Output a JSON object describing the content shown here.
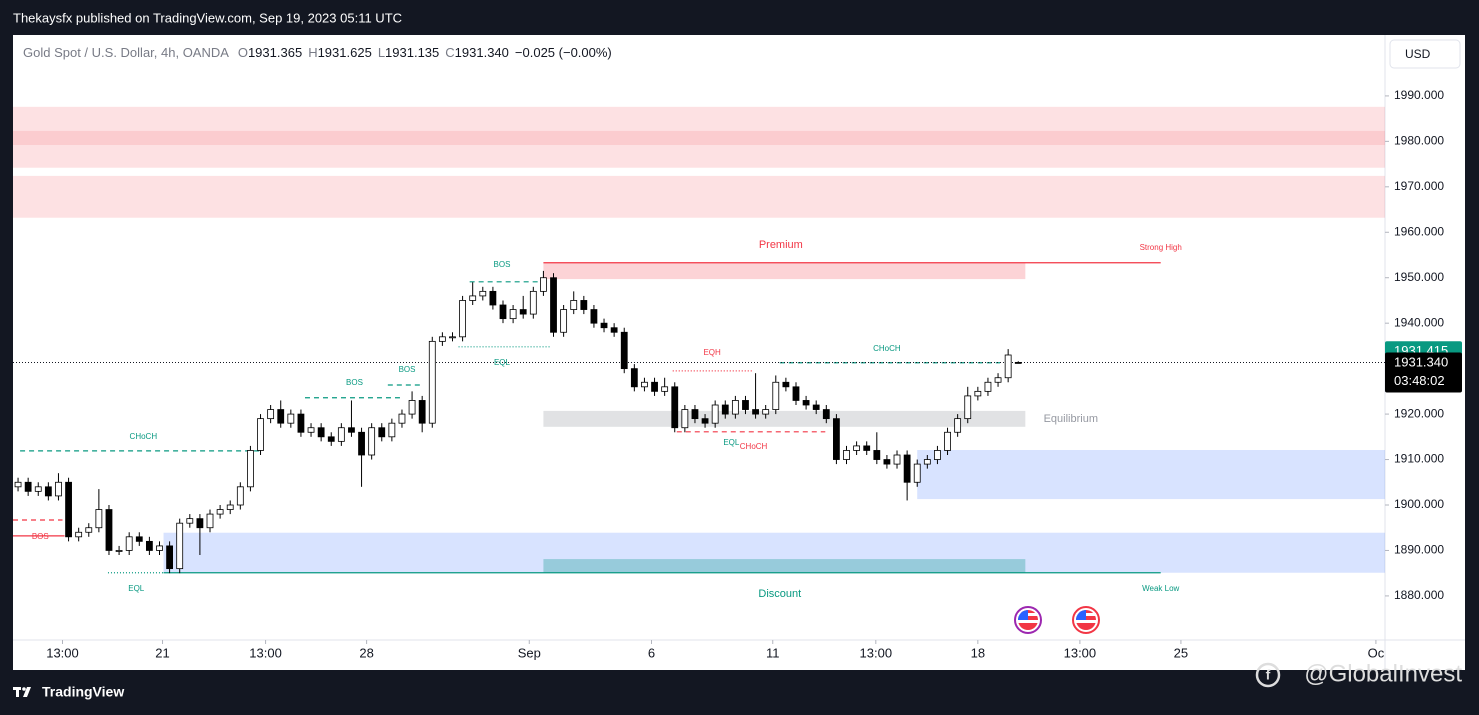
{
  "header": {
    "text": "Thekaysfx published on TradingView.com, Sep 19, 2023 05:11 UTC"
  },
  "footer": {
    "brand": "TradingView",
    "watermark": "@GlobalInvest"
  },
  "chart_data": {
    "type": "candlestick",
    "title": "Gold Spot / U.S. Dollar, 4h, OANDA",
    "ohlc_header": [
      {
        "key": "O",
        "value": "1931.365"
      },
      {
        "key": "H",
        "value": "1931.625"
      },
      {
        "key": "L",
        "value": "1931.135"
      },
      {
        "key": "C",
        "value": "1931.340"
      }
    ],
    "change": "−0.025 (−0.00%)",
    "currency": "USD",
    "up_color": "#ffffff",
    "down_color": "#000000",
    "border_color": "#000000",
    "grid": false,
    "open": [
      1904,
      1905,
      1903,
      1904,
      1902,
      1905,
      1893,
      1894,
      1895,
      1899,
      1890,
      1890,
      1893,
      1892,
      1890,
      1891,
      1886,
      1896,
      1897,
      1895,
      1898,
      1899,
      1900,
      1904,
      1912,
      1919,
      1921,
      1918,
      1920,
      1916,
      1917,
      1915,
      1914,
      1917,
      1916,
      1911,
      1917,
      1915,
      1918,
      1920,
      1923,
      1918,
      1936,
      1937,
      1937,
      1945,
      1946,
      1947,
      1944,
      1941,
      1943,
      1942,
      1947,
      1950,
      1938,
      1943,
      1945,
      1943,
      1940,
      1939,
      1938,
      1930,
      1926,
      1927,
      1925,
      1926,
      1917,
      1921,
      1919,
      1918,
      1922,
      1920,
      1923,
      1921,
      1920,
      1921,
      1927,
      1926,
      1923,
      1922,
      1921,
      1919,
      1910,
      1912,
      1913,
      1912,
      1910,
      1909,
      1911,
      1905,
      1909,
      1910,
      1912,
      1916,
      1919,
      1924,
      1925,
      1927,
      1928,
      1931.365
    ],
    "high": [
      1906,
      1906,
      1905,
      1905,
      1907,
      1906,
      1895,
      1896,
      1903.5,
      1900,
      1891,
      1894,
      1894,
      1893,
      1892,
      1892,
      1897,
      1898,
      1898,
      1899,
      1900,
      1901,
      1905,
      1913,
      1920,
      1922,
      1923,
      1921,
      1921,
      1918,
      1918,
      1916,
      1918,
      1923,
      1917,
      1918,
      1918,
      1919,
      1921,
      1925,
      1924,
      1937,
      1938,
      1938,
      1946,
      1949,
      1948,
      1948,
      1945,
      1944,
      1946,
      1948,
      1951.5,
      1951,
      1944,
      1947,
      1946,
      1944,
      1941,
      1940,
      1939,
      1931,
      1928,
      1928,
      1928,
      1927,
      1922,
      1922,
      1920,
      1923,
      1923,
      1924,
      1924,
      1929,
      1922,
      1928.5,
      1928,
      1927,
      1924,
      1923,
      1922,
      1920,
      1913,
      1914,
      1914,
      1916,
      1911,
      1912,
      1912,
      1910,
      1911,
      1913,
      1917,
      1920,
      1926,
      1926,
      1928,
      1929,
      1934.3,
      1931.625
    ],
    "low": [
      1903,
      1902,
      1902,
      1901,
      1901,
      1892,
      1892,
      1893,
      1894,
      1889,
      1889,
      1889,
      1891,
      1889,
      1889,
      1885,
      1885,
      1895,
      1889,
      1894,
      1897,
      1898,
      1899,
      1903,
      1911,
      1918,
      1917,
      1917,
      1915,
      1915,
      1914,
      1913,
      1913,
      1915,
      1904,
      1910,
      1914,
      1914,
      1917,
      1919,
      1916,
      1917,
      1935,
      1936,
      1936,
      1944,
      1945,
      1943,
      1940,
      1940,
      1941,
      1941,
      1946,
      1937,
      1937,
      1942,
      1942,
      1939,
      1938,
      1937,
      1929,
      1925,
      1925,
      1924,
      1924,
      1916,
      1916,
      1918,
      1917,
      1917,
      1919,
      1919,
      1920,
      1919,
      1919,
      1920,
      1925,
      1922,
      1921,
      1920,
      1918,
      1909,
      1909,
      1911,
      1911,
      1909,
      1908,
      1908,
      1901,
      1904,
      1908,
      1909,
      1911,
      1915,
      1918,
      1923,
      1924,
      1926,
      1927,
      1931.135
    ],
    "close": [
      1905,
      1903,
      1904,
      1902,
      1905,
      1893,
      1894,
      1895,
      1899,
      1890,
      1890,
      1893,
      1892,
      1890,
      1891,
      1886,
      1896,
      1897,
      1895,
      1898,
      1899,
      1900,
      1904,
      1912,
      1919,
      1921,
      1918,
      1920,
      1916,
      1917,
      1915,
      1914,
      1917,
      1916,
      1911,
      1917,
      1915,
      1918,
      1920,
      1923,
      1918,
      1936,
      1937,
      1937,
      1945,
      1946,
      1947,
      1944,
      1941,
      1943,
      1942,
      1947,
      1950,
      1938,
      1943,
      1945,
      1943,
      1940,
      1939,
      1938,
      1930,
      1926,
      1927,
      1925,
      1926,
      1917,
      1921,
      1919,
      1918,
      1922,
      1920,
      1923,
      1921,
      1920,
      1921,
      1927,
      1926,
      1923,
      1922,
      1921,
      1919,
      1910,
      1912,
      1913,
      1912,
      1910,
      1909,
      1911,
      1905,
      1909,
      1910,
      1912,
      1916,
      1919,
      1924,
      1925,
      1927,
      1928,
      1933,
      1931.34
    ],
    "xlim": [
      -0.5,
      135.3
    ],
    "xticks": [
      {
        "value": 4.4,
        "label": "13:00"
      },
      {
        "value": 14.3,
        "label": "21"
      },
      {
        "value": 24.5,
        "label": "13:00"
      },
      {
        "value": 34.5,
        "label": "28"
      },
      {
        "value": 50.6,
        "label": "Sep"
      },
      {
        "value": 62.7,
        "label": "6"
      },
      {
        "value": 74.7,
        "label": "11"
      },
      {
        "value": 84.9,
        "label": "13:00"
      },
      {
        "value": 95,
        "label": "18"
      },
      {
        "value": 105.1,
        "label": "13:00"
      },
      {
        "value": 115.1,
        "label": "25"
      },
      {
        "value": 134.4,
        "label": "Oc"
      }
    ],
    "ylim": [
      1870.3,
      2003.4
    ],
    "yticks": [
      {
        "value": 1880,
        "label": "1880.000"
      },
      {
        "value": 1890,
        "label": "1890.000"
      },
      {
        "value": 1900,
        "label": "1900.000"
      },
      {
        "value": 1910,
        "label": "1910.000"
      },
      {
        "value": 1920,
        "label": "1920.000"
      },
      {
        "value": 1930,
        "label": "1930.000"
      },
      {
        "value": 1940,
        "label": "1940.000"
      },
      {
        "value": 1950,
        "label": "1950.000"
      },
      {
        "value": 1960,
        "label": "1960.000"
      },
      {
        "value": 1970,
        "label": "1970.000"
      },
      {
        "value": 1980,
        "label": "1980.000"
      },
      {
        "value": 1990,
        "label": "1990.000"
      }
    ],
    "zones": [
      {
        "ylim": [
          1963.2,
          1972.4
        ],
        "xlim": [
          -0.5,
          135.3
        ],
        "color": "rgba(242,54,69,0.15)"
      },
      {
        "ylim": [
          1974.2,
          1987.6
        ],
        "xlim": [
          -0.5,
          135.3
        ],
        "color": "rgba(242,54,69,0.15)"
      },
      {
        "ylim": [
          1979.2,
          1982.3
        ],
        "xlim": [
          -0.5,
          135.3
        ],
        "color": "rgba(242,54,69,0.12)"
      },
      {
        "ylim": [
          1885.1,
          1893.9
        ],
        "xlim": [
          14.4,
          135.3
        ],
        "color": "rgba(41,98,255,0.18)"
      },
      {
        "ylim": [
          1901.3,
          1912.1
        ],
        "xlim": [
          89.0,
          135.3
        ],
        "color": "rgba(41,98,255,0.18)"
      },
      {
        "ylim": [
          1949.7,
          1953.3
        ],
        "xlim": [
          52.0,
          99.7
        ],
        "color": "rgba(242,54,69,0.22)"
      },
      {
        "ylim": [
          1917.2,
          1920.7
        ],
        "xlim": [
          52.0,
          99.7
        ],
        "color": "rgba(120,123,134,0.22)"
      },
      {
        "ylim": [
          1885.1,
          1888.1
        ],
        "xlim": [
          52.0,
          99.7
        ],
        "color": "rgba(0,150,136,0.3)"
      }
    ],
    "lines": [
      {
        "y": 1911.9,
        "x": [
          0.2,
          24.0
        ],
        "color": "#089981",
        "style": "dashed"
      },
      {
        "y": 1923.6,
        "x": [
          28.4,
          37.8
        ],
        "color": "#089981",
        "style": "dashed"
      },
      {
        "y": 1926.4,
        "x": [
          36.6,
          39.8
        ],
        "color": "#089981",
        "style": "dashed"
      },
      {
        "y": 1949.1,
        "x": [
          44.7,
          52.2
        ],
        "color": "#089981",
        "style": "dashed"
      },
      {
        "y": 1893.2,
        "x": [
          -0.5,
          4.6
        ],
        "color": "#f23645",
        "style": "solid"
      },
      {
        "y": 1896.7,
        "x": [
          -0.5,
          4.4
        ],
        "color": "#f23645",
        "style": "dashed"
      },
      {
        "y": 1885.1,
        "x": [
          8.9,
          14.5
        ],
        "color": "#089981",
        "style": "dotted"
      },
      {
        "y": 1934.8,
        "x": [
          43.6,
          52.7
        ],
        "color": "#089981",
        "style": "dotted"
      },
      {
        "y": 1929.5,
        "x": [
          64.8,
          72.7
        ],
        "color": "#f23645",
        "style": "dotted"
      },
      {
        "y": 1916.1,
        "x": [
          65.2,
          79.9
        ],
        "color": "#f23645",
        "style": "dashed"
      },
      {
        "y": 1931.3,
        "x": [
          75.4,
          97.2
        ],
        "color": "#089981",
        "style": "dashed"
      },
      {
        "y": 1953.3,
        "x": [
          52.0,
          113.1
        ],
        "color": "#f23645",
        "style": "solid"
      },
      {
        "y": 1885.1,
        "x": [
          14.4,
          113.1
        ],
        "color": "#089981",
        "style": "solid"
      }
    ],
    "annotations": [
      {
        "text": "CHoCH",
        "x": 12.4,
        "y": 1915.0,
        "color": "#089981",
        "size": 8
      },
      {
        "text": "BOS",
        "x": 33.3,
        "y": 1926.9,
        "color": "#089981",
        "size": 8
      },
      {
        "text": "BOS",
        "x": 38.5,
        "y": 1929.7,
        "color": "#089981",
        "size": 8
      },
      {
        "text": "BOS",
        "x": 47.9,
        "y": 1952.8,
        "color": "#089981",
        "size": 8
      },
      {
        "text": "BOS",
        "x": 2.2,
        "y": 1893.0,
        "color": "#f23645",
        "size": 8
      },
      {
        "text": "EQL",
        "x": 11.7,
        "y": 1881.5,
        "color": "#089981",
        "size": 8
      },
      {
        "text": "EQL",
        "x": 47.9,
        "y": 1931.3,
        "color": "#089981",
        "size": 8
      },
      {
        "text": "EQH",
        "x": 68.7,
        "y": 1933.5,
        "color": "#f23645",
        "size": 8
      },
      {
        "text": "EQL",
        "x": 70.6,
        "y": 1913.7,
        "color": "#089981",
        "size": 8
      },
      {
        "text": "CHoCH",
        "x": 72.8,
        "y": 1912.8,
        "color": "#f23645",
        "size": 8
      },
      {
        "text": "CHoCH",
        "x": 86.0,
        "y": 1934.3,
        "color": "#089981",
        "size": 8
      },
      {
        "text": "Premium",
        "x": 75.5,
        "y": 1957.2,
        "color": "#f23645",
        "size": 11
      },
      {
        "text": "Equilibrium",
        "x": 104.2,
        "y": 1918.9,
        "color": "#9598a1",
        "size": 11
      },
      {
        "text": "Discount",
        "x": 75.4,
        "y": 1880.4,
        "color": "#089981",
        "size": 11
      },
      {
        "text": "Strong High",
        "x": 113.1,
        "y": 1956.6,
        "color": "#f23645",
        "size": 8
      },
      {
        "text": "Weak Low",
        "x": 113.1,
        "y": 1881.5,
        "color": "#089981",
        "size": 8
      }
    ],
    "price_badges": [
      {
        "value": 1931.415,
        "label": "1931.415",
        "color": "#089981"
      },
      {
        "value": 1931.34,
        "label": "1931.340",
        "color": "#000000",
        "countdown": "03:48:02"
      }
    ]
  }
}
